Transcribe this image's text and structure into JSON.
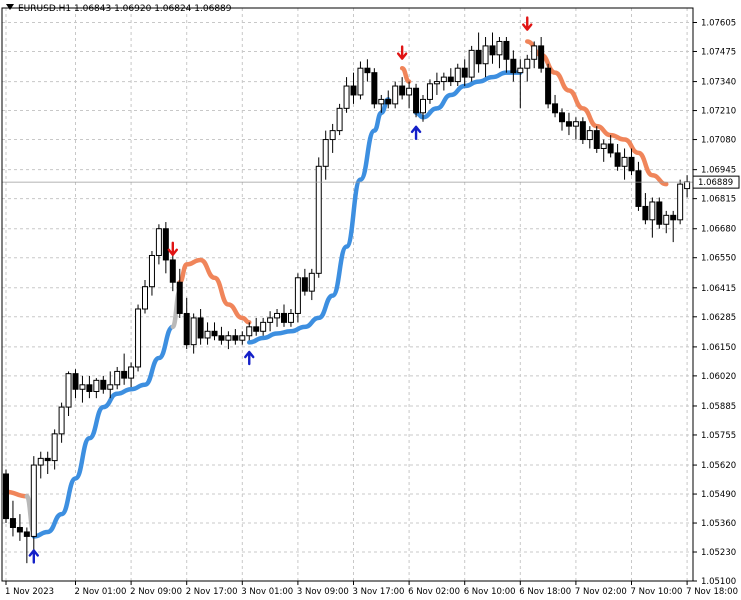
{
  "header": {
    "symbol": "EURUSD.H1",
    "open": "1.06843",
    "high": "1.06920",
    "low": "1.06824",
    "close": "1.06889"
  },
  "colors": {
    "background": "#ffffff",
    "grid": "#c8c8c8",
    "bull_body": "#ffffff",
    "bear_body": "#000000",
    "wick": "#000000",
    "trend_up": "#3d8fe0",
    "trend_down": "#f0855a",
    "trend_neutral": "#b9b9b9",
    "arrow_buy": "#1420c8",
    "arrow_sell": "#e01414"
  },
  "chart_data": {
    "type": "candlestick",
    "title": "EURUSD.H1",
    "current_price": "1.06889",
    "ylim": [
      1.051,
      1.0767
    ],
    "y_ticks": [
      "1.07605",
      "1.07475",
      "1.07340",
      "1.07210",
      "1.07080",
      "1.06945",
      "1.06815",
      "1.06680",
      "1.06550",
      "1.06415",
      "1.06285",
      "1.06150",
      "1.06020",
      "1.05885",
      "1.05755",
      "1.05620",
      "1.05490",
      "1.05360",
      "1.05230",
      "1.05100"
    ],
    "x_ticks": [
      {
        "label": "1 Nov 2023",
        "bar": 0
      },
      {
        "label": "2 Nov 01:00",
        "bar": 10
      },
      {
        "label": "2 Nov 09:00",
        "bar": 18
      },
      {
        "label": "2 Nov 17:00",
        "bar": 26
      },
      {
        "label": "3 Nov 01:00",
        "bar": 34
      },
      {
        "label": "3 Nov 09:00",
        "bar": 42
      },
      {
        "label": "3 Nov 17:00",
        "bar": 50
      },
      {
        "label": "6 Nov 02:00",
        "bar": 58
      },
      {
        "label": "6 Nov 10:00",
        "bar": 66
      },
      {
        "label": "6 Nov 18:00",
        "bar": 74
      },
      {
        "label": "7 Nov 02:00",
        "bar": 82
      },
      {
        "label": "7 Nov 10:00",
        "bar": 90
      },
      {
        "label": "7 Nov 18:00",
        "bar": 98
      }
    ],
    "candles": [
      [
        1.0558,
        1.056,
        1.0536,
        1.0538
      ],
      [
        1.0538,
        1.0546,
        1.053,
        1.0534
      ],
      [
        1.0534,
        1.054,
        1.0528,
        1.0532
      ],
      [
        1.0532,
        1.0534,
        1.0518,
        1.053
      ],
      [
        1.053,
        1.0566,
        1.0524,
        1.0562
      ],
      [
        1.0562,
        1.0568,
        1.0556,
        1.0565
      ],
      [
        1.0565,
        1.0568,
        1.0558,
        1.0564
      ],
      [
        1.0564,
        1.0578,
        1.056,
        1.0576
      ],
      [
        1.0576,
        1.059,
        1.0572,
        1.0588
      ],
      [
        1.0588,
        1.0604,
        1.0584,
        1.0603
      ],
      [
        1.0603,
        1.0605,
        1.0592,
        1.0596
      ],
      [
        1.0596,
        1.0602,
        1.059,
        1.0598
      ],
      [
        1.0598,
        1.0602,
        1.0592,
        1.0595
      ],
      [
        1.0595,
        1.0601,
        1.0592,
        1.06
      ],
      [
        1.06,
        1.0602,
        1.0594,
        1.0596
      ],
      [
        1.0596,
        1.0604,
        1.0592,
        1.0598
      ],
      [
        1.0598,
        1.0606,
        1.0596,
        1.0604
      ],
      [
        1.0604,
        1.0612,
        1.0598,
        1.0601
      ],
      [
        1.0601,
        1.0608,
        1.0597,
        1.0606
      ],
      [
        1.0606,
        1.0634,
        1.0604,
        1.0632
      ],
      [
        1.0632,
        1.0645,
        1.063,
        1.0642
      ],
      [
        1.0642,
        1.0658,
        1.0638,
        1.0656
      ],
      [
        1.0656,
        1.067,
        1.0652,
        1.0668
      ],
      [
        1.0668,
        1.0671,
        1.0648,
        1.0654
      ],
      [
        1.0654,
        1.0658,
        1.064,
        1.0644
      ],
      [
        1.0644,
        1.065,
        1.0628,
        1.063
      ],
      [
        1.063,
        1.0637,
        1.0614,
        1.0616
      ],
      [
        1.0616,
        1.063,
        1.0612,
        1.0628
      ],
      [
        1.0628,
        1.0632,
        1.0616,
        1.0619
      ],
      [
        1.0619,
        1.0626,
        1.0616,
        1.0622
      ],
      [
        1.0622,
        1.0626,
        1.0618,
        1.062
      ],
      [
        1.062,
        1.0624,
        1.0616,
        1.0618
      ],
      [
        1.0618,
        1.0622,
        1.0614,
        1.062
      ],
      [
        1.062,
        1.0623,
        1.0616,
        1.0618
      ],
      [
        1.0618,
        1.0622,
        1.0616,
        1.062
      ],
      [
        1.062,
        1.0626,
        1.0618,
        1.0624
      ],
      [
        1.0624,
        1.0628,
        1.062,
        1.0622
      ],
      [
        1.0622,
        1.0628,
        1.062,
        1.0626
      ],
      [
        1.0626,
        1.0631,
        1.0622,
        1.0628
      ],
      [
        1.0628,
        1.0632,
        1.0624,
        1.063
      ],
      [
        1.063,
        1.0634,
        1.0624,
        1.0626
      ],
      [
        1.0626,
        1.0632,
        1.0624,
        1.063
      ],
      [
        1.063,
        1.0648,
        1.0626,
        1.0646
      ],
      [
        1.0646,
        1.065,
        1.0638,
        1.064
      ],
      [
        1.064,
        1.065,
        1.0636,
        1.0648
      ],
      [
        1.0648,
        1.07,
        1.0646,
        1.0696
      ],
      [
        1.0696,
        1.0712,
        1.069,
        1.0708
      ],
      [
        1.0708,
        1.0715,
        1.0702,
        1.0712
      ],
      [
        1.0712,
        1.0724,
        1.071,
        1.0722
      ],
      [
        1.0722,
        1.0736,
        1.072,
        1.0732
      ],
      [
        1.0732,
        1.0738,
        1.0724,
        1.0728
      ],
      [
        1.0728,
        1.0743,
        1.0726,
        1.074
      ],
      [
        1.074,
        1.0744,
        1.0734,
        1.0738
      ],
      [
        1.0738,
        1.074,
        1.0722,
        1.0724
      ],
      [
        1.0724,
        1.0728,
        1.072,
        1.0726
      ],
      [
        1.0726,
        1.073,
        1.0722,
        1.0724
      ],
      [
        1.0724,
        1.0734,
        1.0722,
        1.0732
      ],
      [
        1.0732,
        1.0736,
        1.0726,
        1.0728
      ],
      [
        1.0728,
        1.0734,
        1.0722,
        1.0731
      ],
      [
        1.0731,
        1.0733,
        1.0718,
        1.072
      ],
      [
        1.072,
        1.0728,
        1.0716,
        1.0726
      ],
      [
        1.0726,
        1.0735,
        1.0724,
        1.0733
      ],
      [
        1.0733,
        1.0738,
        1.0728,
        1.0734
      ],
      [
        1.0734,
        1.0738,
        1.073,
        1.0736
      ],
      [
        1.0736,
        1.074,
        1.0732,
        1.0734
      ],
      [
        1.0734,
        1.0742,
        1.0732,
        1.074
      ],
      [
        1.074,
        1.0744,
        1.0732,
        1.0736
      ],
      [
        1.0736,
        1.075,
        1.0734,
        1.0748
      ],
      [
        1.0748,
        1.0756,
        1.0738,
        1.0742
      ],
      [
        1.0742,
        1.0754,
        1.0736,
        1.075
      ],
      [
        1.075,
        1.0756,
        1.0742,
        1.0746
      ],
      [
        1.0746,
        1.0754,
        1.074,
        1.0752
      ],
      [
        1.0752,
        1.0754,
        1.0738,
        1.0744
      ],
      [
        1.0744,
        1.0748,
        1.0734,
        1.0738
      ],
      [
        1.0738,
        1.0744,
        1.0722,
        1.074
      ],
      [
        1.074,
        1.0746,
        1.0734,
        1.0744
      ],
      [
        1.0744,
        1.0752,
        1.074,
        1.075
      ],
      [
        1.075,
        1.0754,
        1.0738,
        1.074
      ],
      [
        1.074,
        1.0742,
        1.0722,
        1.0724
      ],
      [
        1.0724,
        1.0728,
        1.0718,
        1.072
      ],
      [
        1.072,
        1.0722,
        1.0712,
        1.0716
      ],
      [
        1.0716,
        1.072,
        1.071,
        1.0714
      ],
      [
        1.0714,
        1.0718,
        1.0708,
        1.0716
      ],
      [
        1.0716,
        1.0718,
        1.0706,
        1.0708
      ],
      [
        1.0708,
        1.0714,
        1.0704,
        1.0712
      ],
      [
        1.0712,
        1.0714,
        1.0702,
        1.0704
      ],
      [
        1.0704,
        1.0708,
        1.0698,
        1.0706
      ],
      [
        1.0706,
        1.071,
        1.07,
        1.0702
      ],
      [
        1.0702,
        1.0706,
        1.0694,
        1.0696
      ],
      [
        1.0696,
        1.0704,
        1.069,
        1.07
      ],
      [
        1.07,
        1.0704,
        1.0692,
        1.0694
      ],
      [
        1.0694,
        1.0698,
        1.0676,
        1.0678
      ],
      [
        1.0678,
        1.0684,
        1.067,
        1.0672
      ],
      [
        1.0672,
        1.0682,
        1.0664,
        1.068
      ],
      [
        1.068,
        1.0682,
        1.0668,
        1.067
      ],
      [
        1.067,
        1.0676,
        1.0666,
        1.0674
      ],
      [
        1.0674,
        1.0676,
        1.0662,
        1.0672
      ],
      [
        1.0672,
        1.069,
        1.067,
        1.0688
      ],
      [
        1.0686,
        1.0692,
        1.0682,
        1.0689
      ]
    ],
    "trend_segments": [
      {
        "color": "down",
        "points": [
          [
            0,
            1.055
          ],
          [
            3,
            1.0548
          ]
        ]
      },
      {
        "color": "neutral",
        "points": [
          [
            3,
            1.0548
          ],
          [
            4,
            1.0532
          ]
        ]
      },
      {
        "color": "up",
        "points": [
          [
            4,
            1.053
          ],
          [
            6,
            1.0532
          ],
          [
            8,
            1.054
          ],
          [
            10,
            1.0556
          ],
          [
            12,
            1.0574
          ],
          [
            14,
            1.0588
          ],
          [
            16,
            1.0594
          ],
          [
            18,
            1.0596
          ],
          [
            20,
            1.0598
          ],
          [
            22,
            1.061
          ],
          [
            24,
            1.0624
          ]
        ]
      },
      {
        "color": "neutral",
        "points": [
          [
            24,
            1.0624
          ],
          [
            25,
            1.064
          ]
        ]
      },
      {
        "color": "down",
        "points": [
          [
            25,
            1.0644
          ],
          [
            26,
            1.0652
          ],
          [
            28,
            1.0654
          ],
          [
            30,
            1.0646
          ],
          [
            32,
            1.0634
          ],
          [
            34,
            1.0628
          ],
          [
            35,
            1.0626
          ]
        ]
      },
      {
        "color": "up",
        "points": [
          [
            35,
            1.0617
          ],
          [
            37,
            1.0619
          ],
          [
            39,
            1.0621
          ],
          [
            41,
            1.0622
          ],
          [
            43,
            1.0624
          ],
          [
            45,
            1.0628
          ],
          [
            47,
            1.0638
          ],
          [
            49,
            1.066
          ],
          [
            51,
            1.069
          ],
          [
            53,
            1.0712
          ],
          [
            54,
            1.072
          ],
          [
            55,
            1.0726
          ]
        ]
      },
      {
        "color": "down",
        "points": [
          [
            57,
            1.074
          ],
          [
            58,
            1.0734
          ]
        ]
      },
      {
        "color": "up",
        "points": [
          [
            59,
            1.072
          ],
          [
            60,
            1.0718
          ],
          [
            62,
            1.0722
          ],
          [
            64,
            1.0728
          ],
          [
            66,
            1.0732
          ],
          [
            68,
            1.0734
          ],
          [
            70,
            1.0736
          ],
          [
            72,
            1.0738
          ],
          [
            74,
            1.0738
          ]
        ]
      },
      {
        "color": "down",
        "points": [
          [
            75,
            1.0752
          ],
          [
            77,
            1.0746
          ],
          [
            79,
            1.0738
          ],
          [
            81,
            1.073
          ],
          [
            83,
            1.0722
          ],
          [
            85,
            1.0714
          ],
          [
            87,
            1.071
          ],
          [
            89,
            1.0708
          ],
          [
            91,
            1.0702
          ],
          [
            93,
            1.0692
          ],
          [
            95,
            1.0688
          ]
        ]
      }
    ],
    "arrows": [
      {
        "type": "buy",
        "bar": 4,
        "price": 1.0521
      },
      {
        "type": "sell",
        "bar": 24,
        "price": 1.0659
      },
      {
        "type": "buy",
        "bar": 35,
        "price": 1.061
      },
      {
        "type": "sell",
        "bar": 57,
        "price": 1.0747
      },
      {
        "type": "buy",
        "bar": 59,
        "price": 1.0711
      },
      {
        "type": "sell",
        "bar": 75,
        "price": 1.076
      }
    ]
  }
}
